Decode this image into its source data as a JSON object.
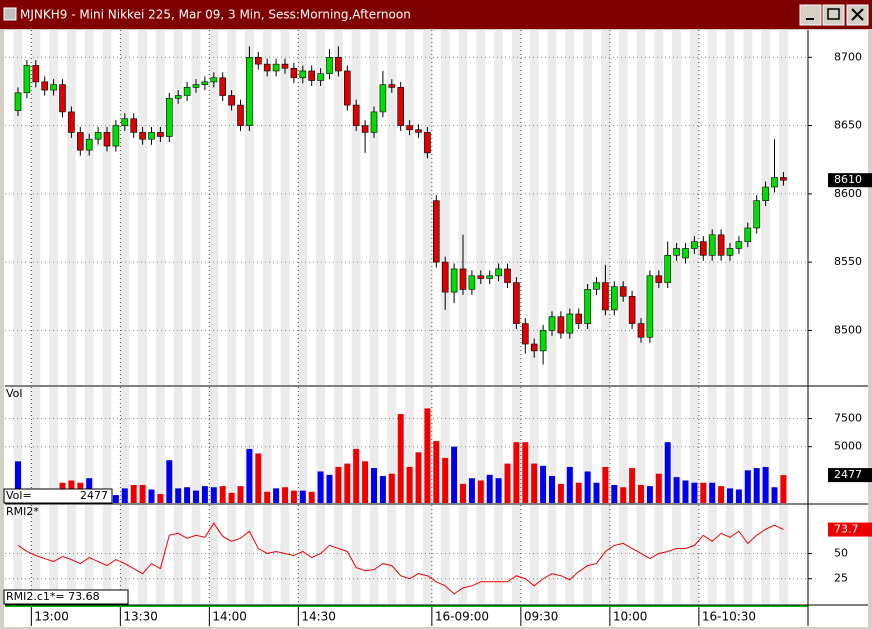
{
  "window": {
    "title": "MJNKH9 - Mini Nikkei 225, Mar 09, 3 Min, Sess:Morning,Afternoon"
  },
  "chart_data": [
    {
      "type": "candlestick",
      "categories": [
        null,
        null,
        "13:00",
        null,
        null,
        null,
        null,
        null,
        null,
        null,
        null,
        null,
        "13:30",
        null,
        null,
        null,
        null,
        null,
        null,
        null,
        null,
        null,
        "14:00",
        null,
        null,
        null,
        null,
        null,
        null,
        null,
        null,
        null,
        "14:30",
        null,
        null,
        null,
        null,
        null,
        null,
        null,
        null,
        null,
        null,
        null,
        null,
        null,
        null,
        "16-09:00",
        null,
        null,
        null,
        null,
        null,
        null,
        null,
        null,
        null,
        "09:30",
        null,
        null,
        null,
        null,
        null,
        null,
        null,
        null,
        null,
        "10:00",
        null,
        null,
        null,
        null,
        null,
        null,
        null,
        null,
        null,
        "16-10:30",
        null,
        null,
        null,
        null,
        null,
        null,
        null,
        null,
        null
      ],
      "open": [
        8661,
        8674,
        8694,
        8682,
        8676,
        8680,
        8660,
        8645,
        8632,
        8640,
        8645,
        8635,
        8650,
        8655,
        8645,
        8640,
        8645,
        8642,
        8670,
        8672,
        8678,
        8680,
        8682,
        8685,
        8672,
        8665,
        8650,
        8700,
        8695,
        8690,
        8695,
        8692,
        8685,
        8690,
        8683,
        8688,
        8700,
        8690,
        8665,
        8650,
        8645,
        8660,
        8680,
        8678,
        8650,
        8647,
        8645,
        8595,
        8550,
        8528,
        8545,
        8530,
        8540,
        8538,
        8540,
        8545,
        8535,
        8505,
        8490,
        8485,
        8500,
        8510,
        8498,
        8512,
        8505,
        8530,
        8535,
        8515,
        8532,
        8525,
        8505,
        8495,
        8540,
        8535,
        8555,
        8553,
        8560,
        8565,
        8555,
        8570,
        8555,
        8560,
        8565,
        8575,
        8595,
        8605,
        8612
      ],
      "high": [
        8678,
        8698,
        8698,
        8686,
        8684,
        8684,
        8664,
        8649,
        8644,
        8649,
        8649,
        8654,
        8659,
        8659,
        8649,
        8649,
        8649,
        8674,
        8676,
        8682,
        8684,
        8686,
        8689,
        8689,
        8676,
        8669,
        8708,
        8704,
        8699,
        8699,
        8699,
        8696,
        8694,
        8694,
        8692,
        8706,
        8708,
        8694,
        8669,
        8654,
        8664,
        8690,
        8684,
        8682,
        8654,
        8651,
        8649,
        8599,
        8554,
        8549,
        8570,
        8544,
        8544,
        8544,
        8549,
        8549,
        8539,
        8509,
        8494,
        8504,
        8514,
        8514,
        8516,
        8516,
        8534,
        8539,
        8548,
        8536,
        8536,
        8529,
        8509,
        8544,
        8544,
        8565,
        8564,
        8564,
        8569,
        8569,
        8574,
        8574,
        8564,
        8569,
        8579,
        8599,
        8609,
        8640,
        8616
      ],
      "low": [
        8657,
        8670,
        8678,
        8672,
        8672,
        8656,
        8641,
        8628,
        8628,
        8636,
        8631,
        8631,
        8646,
        8641,
        8636,
        8636,
        8638,
        8638,
        8666,
        8668,
        8674,
        8676,
        8678,
        8668,
        8661,
        8646,
        8646,
        8691,
        8686,
        8686,
        8688,
        8681,
        8681,
        8679,
        8679,
        8684,
        8686,
        8661,
        8646,
        8630,
        8641,
        8656,
        8674,
        8646,
        8643,
        8641,
        8626,
        8546,
        8515,
        8520,
        8526,
        8526,
        8534,
        8534,
        8536,
        8531,
        8501,
        8483,
        8480,
        8475,
        8496,
        8494,
        8494,
        8501,
        8501,
        8526,
        8511,
        8511,
        8521,
        8501,
        8491,
        8491,
        8531,
        8531,
        8551,
        8549,
        8556,
        8551,
        8551,
        8551,
        8551,
        8556,
        8561,
        8571,
        8591,
        8601,
        8606
      ],
      "close": [
        8674,
        8694,
        8682,
        8676,
        8680,
        8660,
        8645,
        8632,
        8640,
        8645,
        8635,
        8650,
        8655,
        8645,
        8640,
        8645,
        8642,
        8670,
        8672,
        8678,
        8680,
        8682,
        8685,
        8672,
        8665,
        8650,
        8700,
        8695,
        8690,
        8695,
        8692,
        8685,
        8690,
        8683,
        8688,
        8700,
        8690,
        8665,
        8650,
        8645,
        8660,
        8680,
        8678,
        8650,
        8647,
        8645,
        8630,
        8550,
        8528,
        8545,
        8530,
        8540,
        8538,
        8540,
        8545,
        8535,
        8505,
        8490,
        8485,
        8500,
        8510,
        8498,
        8512,
        8505,
        8530,
        8535,
        8515,
        8532,
        8525,
        8505,
        8495,
        8540,
        8535,
        8555,
        8560,
        8560,
        8565,
        8555,
        8570,
        8555,
        8560,
        8565,
        8575,
        8595,
        8605,
        8612,
        8610
      ],
      "up_color": "#00dd00",
      "down_color": "#dd0000",
      "ylim": [
        8460,
        8720
      ],
      "yticks": [
        8500,
        8550,
        8600,
        8650,
        8700
      ],
      "last_label": "8610"
    },
    {
      "type": "bar",
      "title": "Vol",
      "values": [
        3700,
        1200,
        1200,
        600,
        600,
        1800,
        2000,
        1800,
        2200,
        800,
        600,
        700,
        1300,
        1600,
        1600,
        1200,
        800,
        3800,
        1300,
        1400,
        1100,
        1500,
        1400,
        1500,
        900,
        1500,
        4800,
        4400,
        1000,
        1300,
        1400,
        1100,
        1100,
        1000,
        2800,
        2500,
        3200,
        3500,
        4800,
        3700,
        3100,
        2400,
        2600,
        7900,
        3200,
        4500,
        8400,
        5500,
        4000,
        5000,
        1700,
        2200,
        2000,
        2500,
        2200,
        3500,
        5400,
        5400,
        3500,
        3300,
        2400,
        1700,
        3200,
        1800,
        2800,
        1800,
        3200,
        1600,
        1400,
        3100,
        1600,
        1500,
        2600,
        5400,
        2300,
        2000,
        1800,
        1800,
        1800,
        1500,
        1300,
        1200,
        2900,
        3100,
        3200,
        1400,
        2477
      ],
      "up_color": "#0000ee",
      "down_color": "#ee0000",
      "ylim": [
        0,
        10300
      ],
      "yticks": [
        5000,
        7500
      ],
      "readout_label": "Vol=",
      "readout_value": "2477",
      "last_label": "2477"
    },
    {
      "type": "line",
      "title": "RMI2*",
      "values": [
        58,
        52,
        48,
        45,
        42,
        47,
        44,
        40,
        46,
        42,
        38,
        44,
        40,
        35,
        30,
        40,
        35,
        68,
        70,
        65,
        68,
        66,
        80,
        67,
        62,
        65,
        72,
        55,
        50,
        52,
        50,
        48,
        52,
        46,
        50,
        58,
        55,
        52,
        36,
        33,
        34,
        40,
        38,
        28,
        25,
        30,
        28,
        22,
        18,
        10,
        16,
        18,
        22,
        22,
        22,
        22,
        28,
        25,
        18,
        25,
        30,
        28,
        24,
        32,
        38,
        40,
        52,
        58,
        60,
        55,
        50,
        45,
        50,
        52,
        55,
        55,
        58,
        68,
        62,
        70,
        66,
        72,
        60,
        68,
        74,
        78,
        73.68
      ],
      "color": "#ee0000",
      "ylim": [
        0,
        98
      ],
      "yticks": [
        25,
        50
      ],
      "readout": "RMI2.c1*= 73.68",
      "last_label": "73.7"
    }
  ]
}
